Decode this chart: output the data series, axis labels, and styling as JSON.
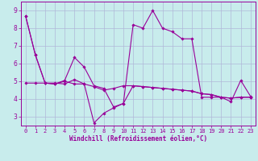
{
  "title": "",
  "xlabel": "Windchill (Refroidissement éolien,°C)",
  "background_color": "#c8ecec",
  "line_color": "#990099",
  "grid_color": "#b0b8d8",
  "xlim": [
    -0.5,
    23.5
  ],
  "ylim": [
    2.5,
    9.5
  ],
  "xticks": [
    0,
    1,
    2,
    3,
    4,
    5,
    6,
    7,
    8,
    9,
    10,
    11,
    12,
    13,
    14,
    15,
    16,
    17,
    18,
    19,
    20,
    21,
    22,
    23
  ],
  "yticks": [
    3,
    4,
    5,
    6,
    7,
    8,
    9
  ],
  "line1_y": [
    8.7,
    6.5,
    4.9,
    4.9,
    4.85,
    5.1,
    4.85,
    2.65,
    3.2,
    3.5,
    3.75,
    8.2,
    8.0,
    9.0,
    8.0,
    7.8,
    7.4,
    7.4,
    4.1,
    4.1,
    4.1,
    3.85,
    5.05,
    4.15
  ],
  "line2_y": [
    8.7,
    6.5,
    4.9,
    4.85,
    5.0,
    4.85,
    4.85,
    4.7,
    4.5,
    4.6,
    4.75,
    4.75,
    4.7,
    4.65,
    4.6,
    4.55,
    4.5,
    4.45,
    4.3,
    4.25,
    4.1,
    4.05,
    4.1,
    4.1
  ],
  "line3_y": [
    4.9,
    4.9,
    4.9,
    4.85,
    5.05,
    6.35,
    5.8,
    4.75,
    4.6,
    3.55,
    3.75,
    4.75,
    4.7,
    4.65,
    4.6,
    4.55,
    4.5,
    4.45,
    4.3,
    4.25,
    4.1,
    4.05,
    4.1,
    4.1
  ],
  "tick_labelsize": 5,
  "xlabel_fontsize": 5.5,
  "marker_size": 1.8,
  "line_width": 0.8
}
